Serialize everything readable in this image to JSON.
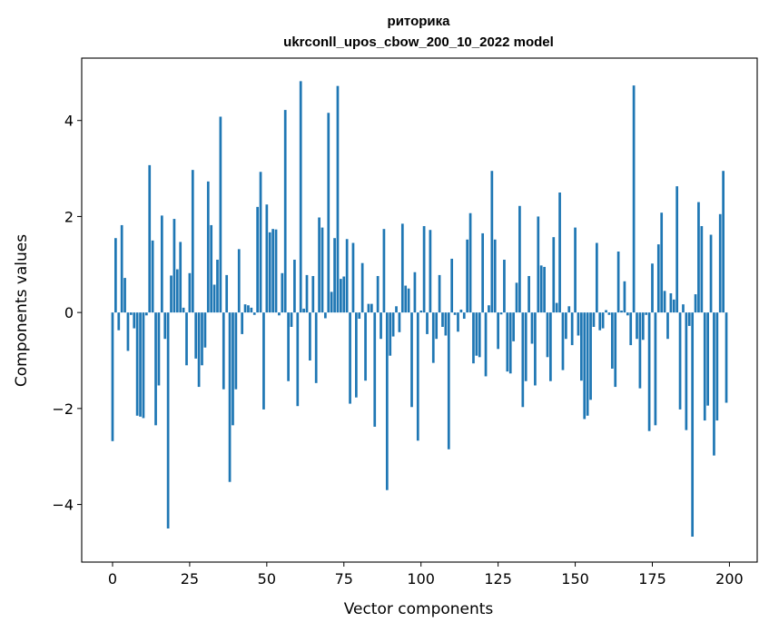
{
  "chart_data": {
    "type": "bar",
    "title_line1": "риторика",
    "title_line2": "ukrconll_upos_cbow_200_10_2022 model",
    "xlabel": "Vector components",
    "ylabel": "Components values",
    "xlim": [
      -10,
      209
    ],
    "ylim": [
      -5.2,
      5.3
    ],
    "xticks": [
      0,
      25,
      50,
      75,
      100,
      125,
      150,
      175,
      200
    ],
    "xtick_labels": [
      "0",
      "25",
      "50",
      "75",
      "100",
      "125",
      "150",
      "175",
      "200"
    ],
    "yticks": [
      -4,
      -2,
      0,
      2,
      4
    ],
    "ytick_labels": [
      "−4",
      "−2",
      "0",
      "2",
      "4"
    ],
    "bar_color": "#1f77b4",
    "grid": false,
    "x": [
      0,
      1,
      2,
      3,
      4,
      5,
      6,
      7,
      8,
      9,
      10,
      11,
      12,
      13,
      14,
      15,
      16,
      17,
      18,
      19,
      20,
      21,
      22,
      23,
      24,
      25,
      26,
      27,
      28,
      29,
      30,
      31,
      32,
      33,
      34,
      35,
      36,
      37,
      38,
      39,
      40,
      41,
      42,
      43,
      44,
      45,
      46,
      47,
      48,
      49,
      50,
      51,
      52,
      53,
      54,
      55,
      56,
      57,
      58,
      59,
      60,
      61,
      62,
      63,
      64,
      65,
      66,
      67,
      68,
      69,
      70,
      71,
      72,
      73,
      74,
      75,
      76,
      77,
      78,
      79,
      80,
      81,
      82,
      83,
      84,
      85,
      86,
      87,
      88,
      89,
      90,
      91,
      92,
      93,
      94,
      95,
      96,
      97,
      98,
      99,
      100,
      101,
      102,
      103,
      104,
      105,
      106,
      107,
      108,
      109,
      110,
      111,
      112,
      113,
      114,
      115,
      116,
      117,
      118,
      119,
      120,
      121,
      122,
      123,
      124,
      125,
      126,
      127,
      128,
      129,
      130,
      131,
      132,
      133,
      134,
      135,
      136,
      137,
      138,
      139,
      140,
      141,
      142,
      143,
      144,
      145,
      146,
      147,
      148,
      149,
      150,
      151,
      152,
      153,
      154,
      155,
      156,
      157,
      158,
      159,
      160,
      161,
      162,
      163,
      164,
      165,
      166,
      167,
      168,
      169,
      170,
      171,
      172,
      173,
      174,
      175,
      176,
      177,
      178,
      179,
      180,
      181,
      182,
      183,
      184,
      185,
      186,
      187,
      188,
      189,
      190,
      191,
      192,
      193,
      194,
      195,
      196,
      197,
      198,
      199
    ],
    "values": [
      -2.68,
      1.55,
      -0.37,
      1.82,
      0.72,
      -0.8,
      -0.05,
      -0.33,
      -2.15,
      -2.17,
      -2.2,
      -0.06,
      3.07,
      1.5,
      -2.35,
      -1.52,
      2.02,
      -0.55,
      -4.5,
      0.77,
      1.95,
      0.9,
      1.47,
      0.1,
      -1.1,
      0.82,
      2.97,
      -0.96,
      -1.55,
      -1.1,
      -0.73,
      2.73,
      1.82,
      0.58,
      1.1,
      4.08,
      -1.6,
      0.78,
      -3.53,
      -2.35,
      -1.6,
      1.32,
      -0.45,
      0.17,
      0.15,
      0.1,
      -0.05,
      2.2,
      2.93,
      -2.02,
      2.25,
      1.67,
      1.74,
      1.73,
      -0.06,
      0.82,
      4.22,
      -1.43,
      -0.3,
      1.1,
      -1.95,
      4.82,
      0.08,
      0.78,
      -1.0,
      0.76,
      -1.47,
      1.98,
      1.77,
      -0.12,
      4.16,
      0.43,
      1.55,
      4.72,
      0.7,
      0.75,
      1.53,
      -1.9,
      1.45,
      -1.77,
      -0.13,
      1.03,
      -1.42,
      0.18,
      0.18,
      -2.38,
      0.76,
      -0.55,
      1.74,
      -3.7,
      -0.9,
      -0.5,
      0.13,
      -0.41,
      1.85,
      0.56,
      0.5,
      -1.97,
      0.84,
      -2.67,
      0.04,
      1.8,
      -0.45,
      1.72,
      -1.05,
      -0.55,
      0.78,
      -0.3,
      -0.48,
      -2.85,
      1.12,
      -0.05,
      -0.4,
      0.06,
      -0.13,
      1.52,
      2.07,
      -1.06,
      -0.9,
      -0.93,
      1.65,
      -1.33,
      0.15,
      2.95,
      1.52,
      -0.76,
      -0.04,
      1.1,
      -1.23,
      -1.27,
      -0.6,
      0.62,
      2.22,
      -1.97,
      -1.43,
      0.76,
      -0.65,
      -1.52,
      2.0,
      0.98,
      0.95,
      -0.93,
      -1.43,
      1.57,
      0.2,
      2.5,
      -1.2,
      -0.55,
      0.13,
      -0.68,
      1.77,
      -0.48,
      -1.42,
      -2.22,
      -2.15,
      -1.82,
      -0.3,
      1.45,
      -0.37,
      -0.33,
      0.05,
      -0.05,
      -1.17,
      -1.55,
      1.27,
      0.04,
      0.65,
      -0.06,
      -0.68,
      4.73,
      -0.55,
      -1.58,
      -0.57,
      -0.05,
      -2.47,
      1.02,
      -2.35,
      1.42,
      2.08,
      0.45,
      -0.55,
      0.4,
      0.27,
      2.63,
      -2.02,
      0.17,
      -2.45,
      -0.28,
      -4.67,
      0.38,
      2.3,
      1.8,
      -2.25,
      -1.94,
      1.62,
      -2.98,
      -2.25,
      2.05,
      2.95,
      -1.88
    ]
  }
}
